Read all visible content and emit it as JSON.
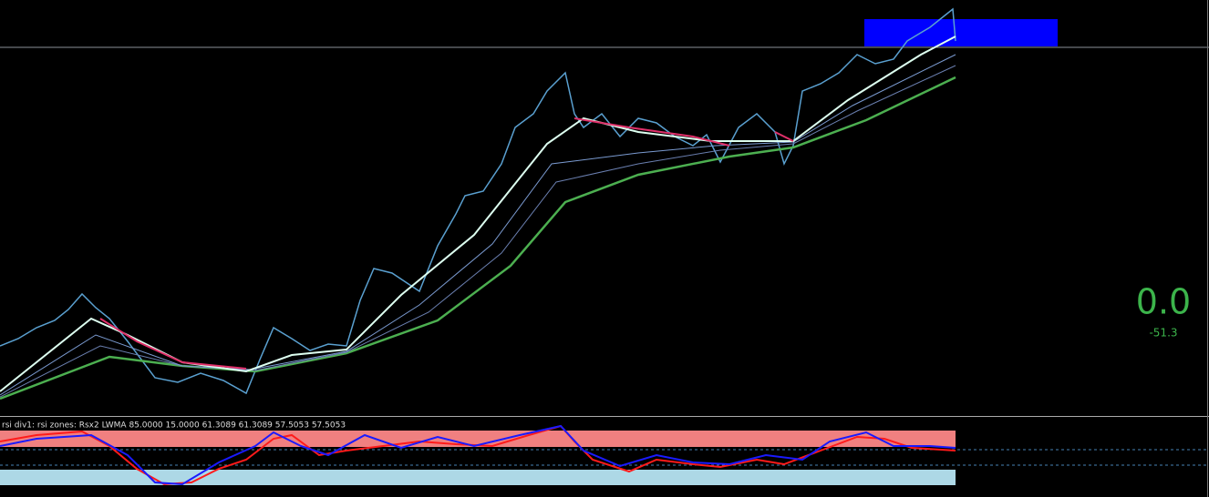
{
  "indicator": {
    "label": "rsi div1: rsi zones: Rsx2 LWMA 85.0000 15.0000 61.3089 61.3089 57.5053 57.5053",
    "value": "0.0",
    "change": "-51.3"
  }
}
